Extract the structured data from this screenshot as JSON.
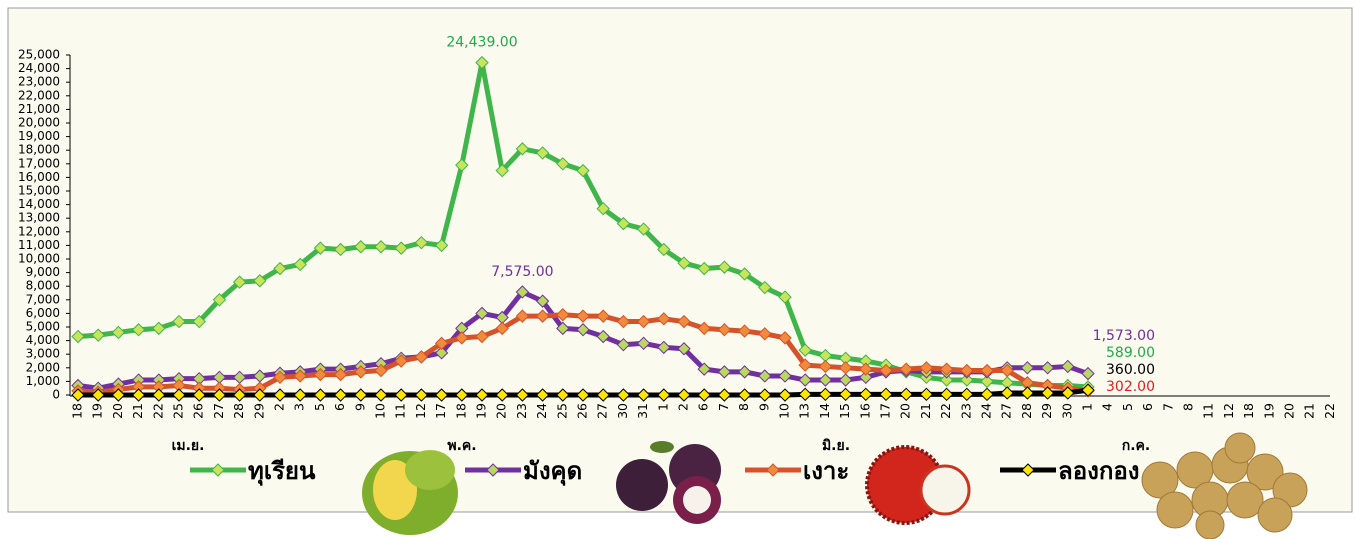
{
  "chart_data": {
    "type": "line",
    "categories": [
      "18",
      "19",
      "20",
      "21",
      "22",
      "25",
      "26",
      "27",
      "28",
      "29",
      "2",
      "3",
      "5",
      "6",
      "9",
      "10",
      "11",
      "12",
      "17",
      "18",
      "19",
      "20",
      "23",
      "24",
      "25",
      "26",
      "27",
      "30",
      "31",
      "1",
      "2",
      "6",
      "7",
      "8",
      "9",
      "10",
      "13",
      "14",
      "15",
      "16",
      "17",
      "20",
      "21",
      "22",
      "23",
      "24",
      "27",
      "28",
      "29",
      "30",
      "1",
      "4",
      "5",
      "6",
      "7",
      "8",
      "11",
      "12",
      "18",
      "19",
      "20",
      "21",
      "22"
    ],
    "month_labels": [
      "เม.ย.",
      "พ.ค.",
      "มิ.ย.",
      "ก.ค."
    ],
    "ylim": [
      0,
      25000
    ],
    "yticks": [
      0,
      {
        "value": 1000,
        "label": "1,000"
      },
      {
        "value": 2000,
        "label": "2,000"
      },
      {
        "value": 3000,
        "label": "3,000"
      },
      {
        "value": 4000,
        "label": "4,000"
      },
      {
        "value": 5000,
        "label": "5,000"
      },
      {
        "value": 6000,
        "label": "6,000"
      },
      {
        "value": 7000,
        "label": "7,000"
      },
      {
        "value": 8000,
        "label": "8,000"
      },
      {
        "value": 9000,
        "label": "9,000"
      },
      {
        "value": 10000,
        "label": "10,000"
      },
      {
        "value": 11000,
        "label": "11,000"
      },
      {
        "value": 12000,
        "label": "12,000"
      },
      {
        "value": 13000,
        "label": "13,000"
      },
      {
        "value": 14000,
        "label": "14,000"
      },
      {
        "value": 15000,
        "label": "15,000"
      },
      {
        "value": 16000,
        "label": "16,000"
      },
      {
        "value": 17000,
        "label": "17,000"
      },
      {
        "value": 18000,
        "label": "18,000"
      },
      {
        "value": 19000,
        "label": "19,000"
      },
      {
        "value": 20000,
        "label": "20,000"
      },
      {
        "value": 21000,
        "label": "21,000"
      },
      {
        "value": 22000,
        "label": "22,000"
      },
      {
        "value": 23000,
        "label": "23,000"
      },
      {
        "value": 24000,
        "label": "24,000"
      },
      {
        "value": 25000,
        "label": "25,000"
      }
    ],
    "grid": false,
    "series": [
      {
        "name": "ทุเรียน",
        "color": "#3fb54a",
        "marker_color": "#c8e35c",
        "label_color": "#22a84a",
        "values": [
          4300,
          4400,
          4600,
          4800,
          4900,
          5400,
          5400,
          7000,
          8300,
          8400,
          9300,
          9600,
          10800,
          10700,
          10900,
          10900,
          10800,
          11200,
          11000,
          16900,
          24439,
          16500,
          18100,
          17800,
          17000,
          16500,
          13700,
          12600,
          12200,
          10700,
          9700,
          9300,
          9400,
          8900,
          7900,
          7200,
          3300,
          2900,
          2700,
          2500,
          2200,
          1700,
          1300,
          1100,
          1100,
          1000,
          900,
          800,
          700,
          700,
          589,
          null,
          null,
          null,
          null,
          null,
          null,
          null,
          null,
          null,
          null,
          null,
          null
        ],
        "value_labels": [
          null,
          null,
          null,
          null,
          null,
          null,
          null,
          null,
          null,
          null,
          null,
          null,
          null,
          null,
          null,
          null,
          null,
          null,
          null,
          null,
          "24,439.00",
          null,
          null,
          null,
          null,
          null,
          null,
          null,
          null,
          null,
          null,
          null,
          null,
          null,
          null,
          null,
          null,
          null,
          null,
          null,
          null,
          null,
          null,
          null,
          null,
          null,
          null,
          null,
          null,
          null,
          "589.00",
          null,
          null,
          null,
          null,
          null,
          null,
          null,
          null,
          null,
          null,
          null,
          null
        ]
      },
      {
        "name": "มังคุด",
        "color": "#7030a0",
        "marker_color": "#b8d860",
        "label_color": "#7030a0",
        "values": [
          700,
          500,
          800,
          1100,
          1100,
          1200,
          1200,
          1300,
          1300,
          1400,
          1600,
          1700,
          1900,
          1900,
          2100,
          2300,
          2700,
          2800,
          3100,
          4900,
          6000,
          5700,
          7575,
          6900,
          4900,
          4800,
          4300,
          3700,
          3800,
          3500,
          3400,
          1900,
          1700,
          1700,
          1400,
          1400,
          1100,
          1100,
          1100,
          1300,
          1700,
          1800,
          1700,
          1700,
          1700,
          1700,
          2000,
          2000,
          2000,
          2100,
          1573,
          null,
          null,
          null,
          null,
          null,
          null,
          null,
          null,
          null,
          null,
          null,
          null
        ],
        "value_labels": [
          null,
          null,
          null,
          null,
          null,
          null,
          null,
          null,
          null,
          null,
          null,
          null,
          null,
          null,
          null,
          null,
          null,
          null,
          null,
          null,
          null,
          null,
          "7,575.00",
          null,
          null,
          null,
          null,
          null,
          null,
          null,
          null,
          null,
          null,
          null,
          null,
          null,
          null,
          null,
          null,
          null,
          null,
          null,
          null,
          null,
          null,
          null,
          null,
          null,
          null,
          null,
          "1,573.00",
          null,
          null,
          null,
          null,
          null,
          null,
          null,
          null,
          null,
          null,
          null,
          null
        ]
      },
      {
        "name": "เงาะ",
        "color": "#d4532b",
        "marker_color": "#f08a3c",
        "label_color": "#e02020",
        "values": [
          300,
          200,
          400,
          600,
          600,
          700,
          500,
          500,
          400,
          500,
          1300,
          1400,
          1500,
          1500,
          1700,
          1800,
          2500,
          2800,
          3800,
          4200,
          4300,
          4900,
          5800,
          5800,
          5900,
          5800,
          5800,
          5400,
          5400,
          5600,
          5400,
          4900,
          4800,
          4700,
          4500,
          4200,
          2200,
          2100,
          2000,
          1900,
          1800,
          1900,
          2000,
          1900,
          1800,
          1800,
          1800,
          900,
          700,
          500,
          302,
          null,
          null,
          null,
          null,
          null,
          null,
          null,
          null,
          null,
          null,
          null,
          null
        ],
        "value_labels": [
          null,
          null,
          null,
          null,
          null,
          null,
          null,
          null,
          null,
          null,
          null,
          null,
          null,
          null,
          null,
          null,
          null,
          null,
          null,
          null,
          null,
          null,
          null,
          null,
          null,
          null,
          null,
          null,
          null,
          null,
          null,
          null,
          null,
          null,
          null,
          null,
          null,
          null,
          null,
          null,
          null,
          null,
          null,
          null,
          null,
          null,
          null,
          null,
          null,
          null,
          "302.00",
          null,
          null,
          null,
          null,
          null,
          null,
          null,
          null,
          null,
          null,
          null,
          null
        ]
      },
      {
        "name": "ลองกอง",
        "color": "#000000",
        "marker_color": "#ffe600",
        "label_color": "#000000",
        "values": [
          0,
          0,
          0,
          0,
          0,
          0,
          0,
          0,
          0,
          0,
          0,
          0,
          0,
          0,
          0,
          0,
          0,
          0,
          0,
          0,
          0,
          0,
          0,
          0,
          0,
          0,
          0,
          0,
          0,
          0,
          0,
          0,
          0,
          0,
          0,
          0,
          50,
          50,
          50,
          50,
          50,
          50,
          50,
          50,
          50,
          50,
          150,
          150,
          150,
          150,
          360,
          null,
          null,
          null,
          null,
          null,
          null,
          null,
          null,
          null,
          null,
          null,
          null
        ],
        "value_labels": [
          null,
          null,
          null,
          null,
          null,
          null,
          null,
          null,
          null,
          null,
          null,
          null,
          null,
          null,
          null,
          null,
          null,
          null,
          null,
          null,
          null,
          null,
          null,
          null,
          null,
          null,
          null,
          null,
          null,
          null,
          null,
          null,
          null,
          null,
          null,
          null,
          null,
          null,
          null,
          null,
          null,
          null,
          null,
          null,
          null,
          null,
          null,
          null,
          null,
          null,
          "360.00",
          null,
          null,
          null,
          null,
          null,
          null,
          null,
          null,
          null,
          null,
          null,
          null
        ]
      }
    ]
  }
}
